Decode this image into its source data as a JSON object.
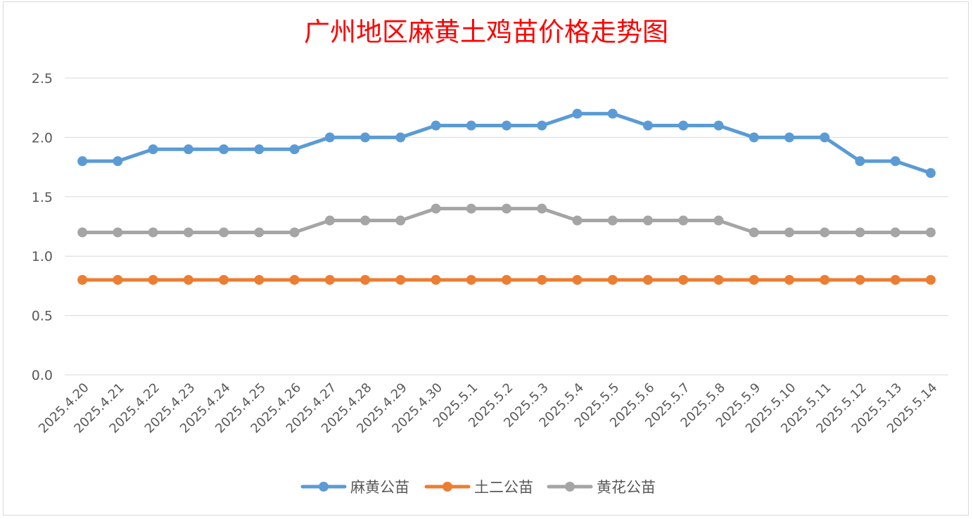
{
  "chart_data": {
    "type": "line",
    "title": "广州地区麻黄土鸡苗价格走势图",
    "title_color": "#ff0000",
    "xlabel": "",
    "ylabel": "",
    "ylim": [
      0,
      2.5
    ],
    "yticks": [
      "0.0",
      "0.5",
      "1.0",
      "1.5",
      "2.0",
      "2.5"
    ],
    "grid": true,
    "legend_position": "bottom",
    "categories": [
      "2025.4.20",
      "2025.4.21",
      "2025.4.22",
      "2025.4.23",
      "2025.4.24",
      "2025.4.25",
      "2025.4.26",
      "2025.4.27",
      "2025.4.28",
      "2025.4.29",
      "2025.4.30",
      "2025.5.1",
      "2025.5.2",
      "2025.5.3",
      "2025.5.4",
      "2025.5.5",
      "2025.5.6",
      "2025.5.7",
      "2025.5.8",
      "2025.5.9",
      "2025.5.10",
      "2025.5.11",
      "2025.5.12",
      "2025.5.13",
      "2025.5.14"
    ],
    "series": [
      {
        "name": "麻黄公苗",
        "color": "#5b9bd5",
        "values": [
          1.8,
          1.8,
          1.9,
          1.9,
          1.9,
          1.9,
          1.9,
          2.0,
          2.0,
          2.0,
          2.1,
          2.1,
          2.1,
          2.1,
          2.2,
          2.2,
          2.1,
          2.1,
          2.1,
          2.0,
          2.0,
          2.0,
          1.8,
          1.8,
          1.7
        ]
      },
      {
        "name": "土二公苗",
        "color": "#ed7d31",
        "values": [
          0.8,
          0.8,
          0.8,
          0.8,
          0.8,
          0.8,
          0.8,
          0.8,
          0.8,
          0.8,
          0.8,
          0.8,
          0.8,
          0.8,
          0.8,
          0.8,
          0.8,
          0.8,
          0.8,
          0.8,
          0.8,
          0.8,
          0.8,
          0.8,
          0.8
        ]
      },
      {
        "name": "黄花公苗",
        "color": "#a5a5a5",
        "values": [
          1.2,
          1.2,
          1.2,
          1.2,
          1.2,
          1.2,
          1.2,
          1.3,
          1.3,
          1.3,
          1.4,
          1.4,
          1.4,
          1.4,
          1.3,
          1.3,
          1.3,
          1.3,
          1.3,
          1.2,
          1.2,
          1.2,
          1.2,
          1.2,
          1.2
        ]
      }
    ]
  }
}
